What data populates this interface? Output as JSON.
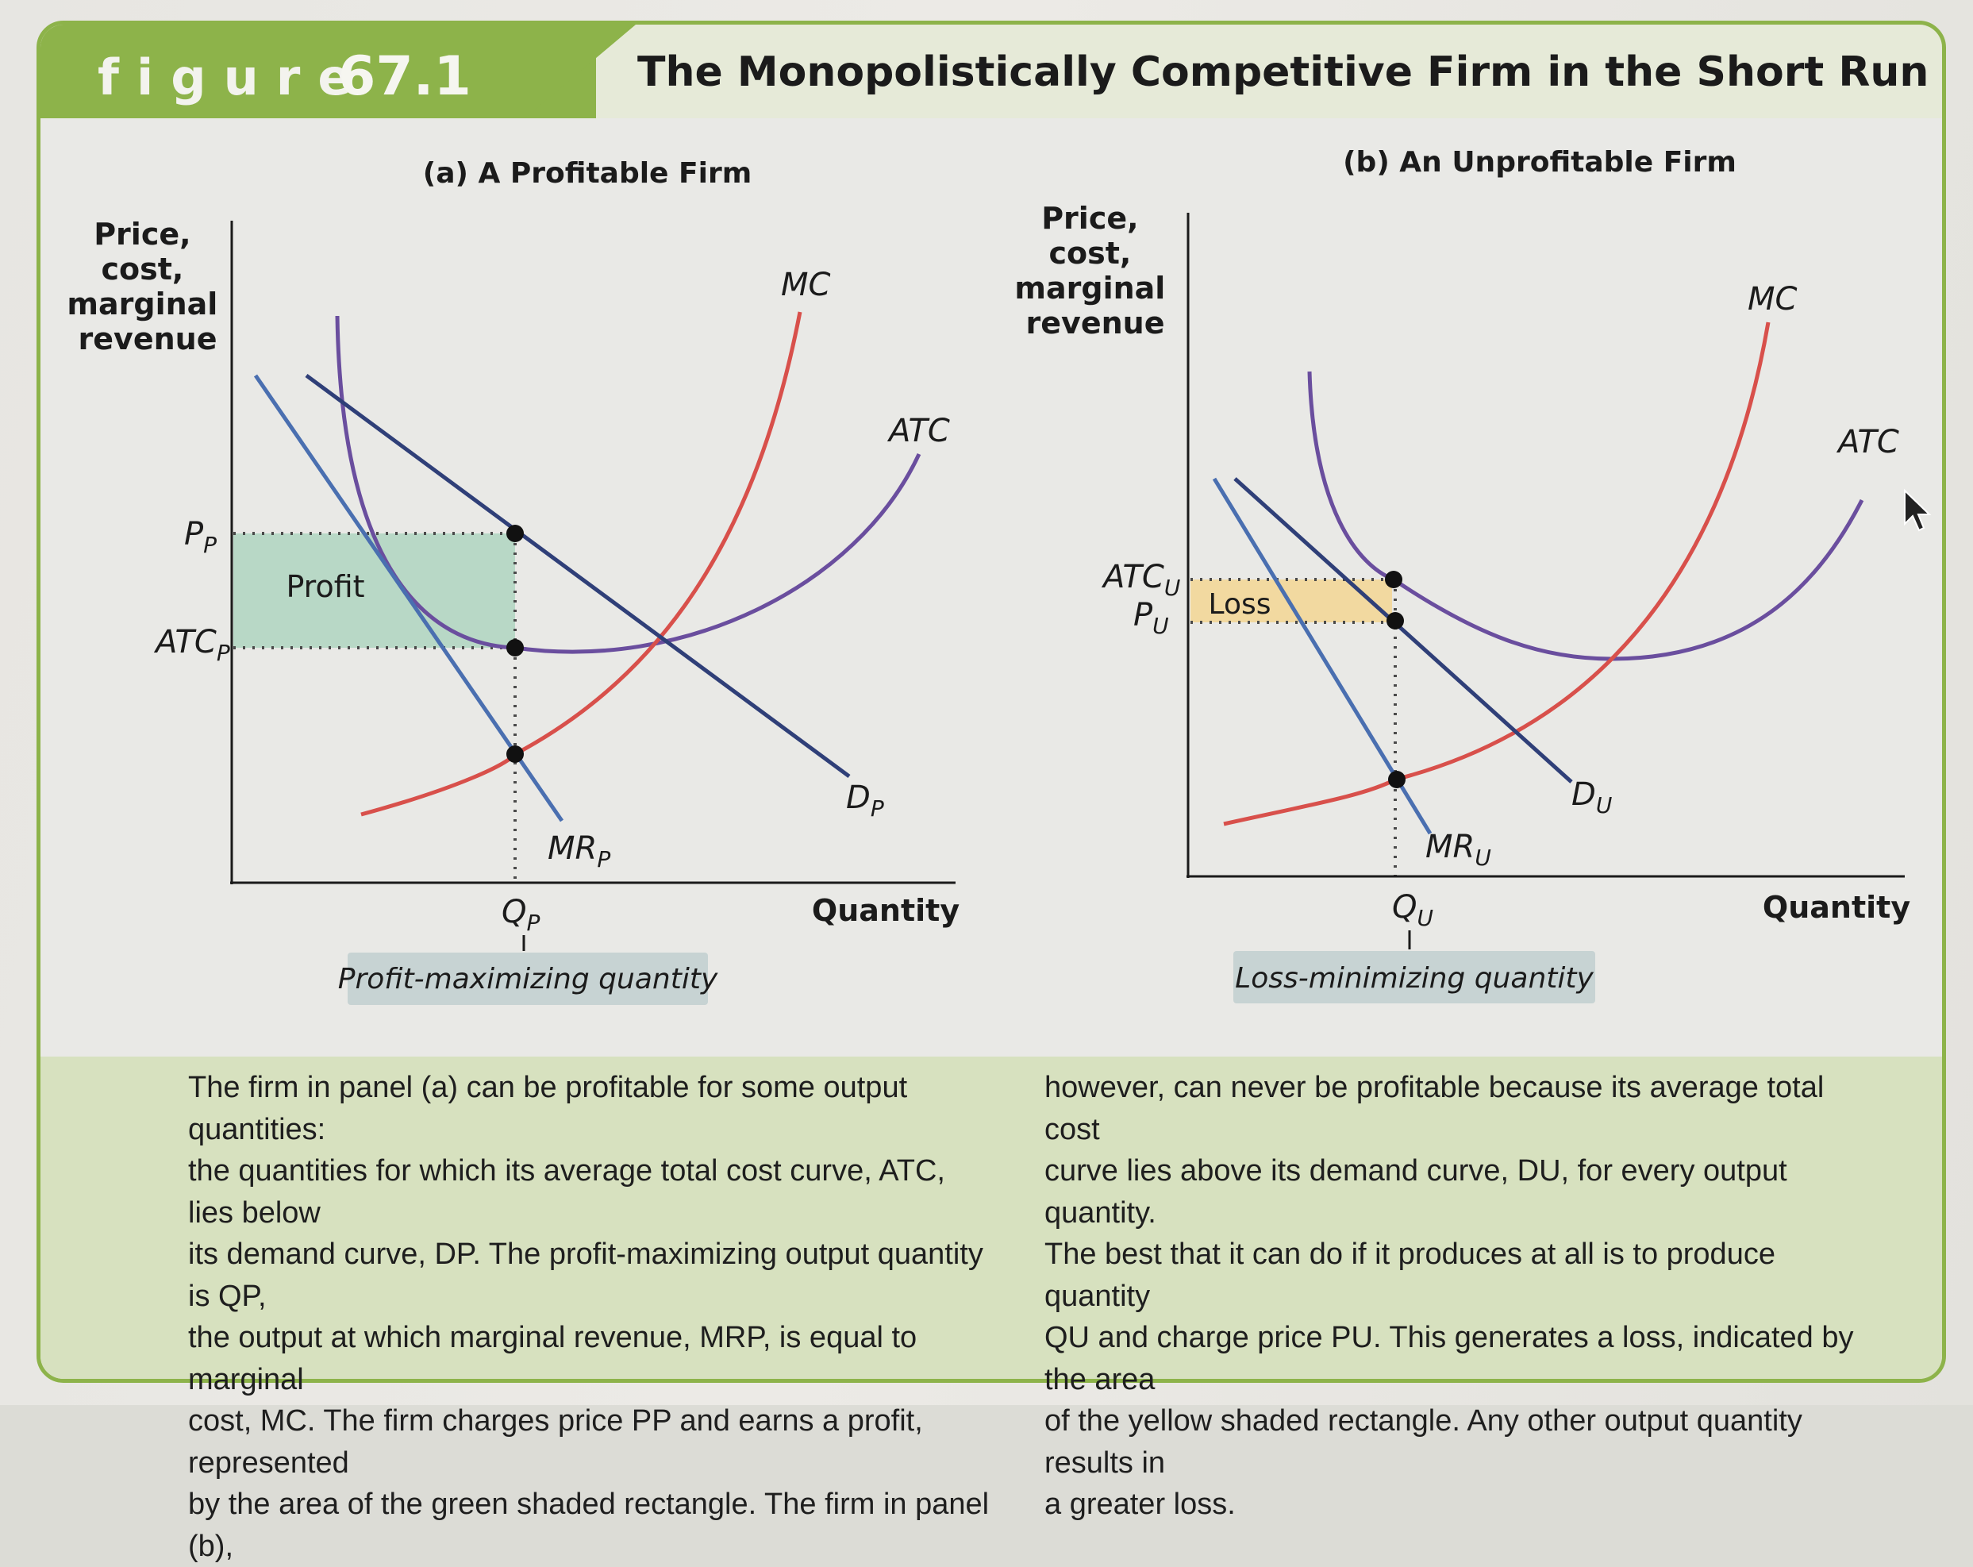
{
  "figure": {
    "label": "figure",
    "number": "67.1",
    "title": "The Monopolistically Competitive Firm in the Short Run",
    "accent_color": "#8db34a"
  },
  "panel_a": {
    "title": "(a) A Profitable Firm",
    "y_axis_label": [
      "Price,",
      "cost,",
      "marginal",
      "revenue"
    ],
    "x_axis_label": "Quantity",
    "price_label": "P",
    "price_sub": "P",
    "atc_label": "ATC",
    "atc_sub": "P",
    "quantity_label": "Q",
    "quantity_sub": "P",
    "region_label": "Profit",
    "region_color": "#b8d8c6",
    "curves": {
      "mc": "MC",
      "atc": "ATC",
      "demand": "D",
      "demand_sub": "P",
      "mr": "MR",
      "mr_sub": "P"
    },
    "callout": "Profit-maximizing quantity"
  },
  "panel_b": {
    "title": "(b) An Unprofitable Firm",
    "y_axis_label": [
      "Price,",
      "cost,",
      "marginal",
      "revenue"
    ],
    "x_axis_label": "Quantity",
    "atc_label": "ATC",
    "atc_sub": "U",
    "price_label": "P",
    "price_sub": "U",
    "quantity_label": "Q",
    "quantity_sub": "U",
    "region_label": "Loss",
    "region_color": "#f2d9a0",
    "curves": {
      "mc": "MC",
      "atc": "ATC",
      "demand": "D",
      "demand_sub": "U",
      "mr": "MR",
      "mr_sub": "U"
    },
    "callout": "Loss-minimizing quantity"
  },
  "colors": {
    "mc": "#d8504b",
    "atc": "#6a4e9e",
    "demand": "#2f3f78",
    "mr": "#4a6fb0",
    "callout_bg": "#c7d3d3"
  },
  "caption": {
    "left": [
      "The firm in panel (a) can be profitable for some output quantities:",
      "the quantities for which its average total cost curve, ATC, lies below",
      "its demand curve, DP. The profit-maximizing output quantity is QP,",
      "the output at which marginal revenue, MRP, is equal to marginal",
      "cost, MC. The firm charges price PP and earns a profit, represented",
      "by the area of the green shaded rectangle. The firm in panel (b),"
    ],
    "right": [
      "however, can never be profitable because its average total cost",
      "curve lies above its demand curve, DU, for every output quantity.",
      "The best that it can do if it produces at all is to produce quantity",
      "QU and charge price PU. This generates a loss, indicated by the area",
      "of the yellow shaded rectangle. Any other output quantity results in",
      "a greater loss."
    ]
  }
}
